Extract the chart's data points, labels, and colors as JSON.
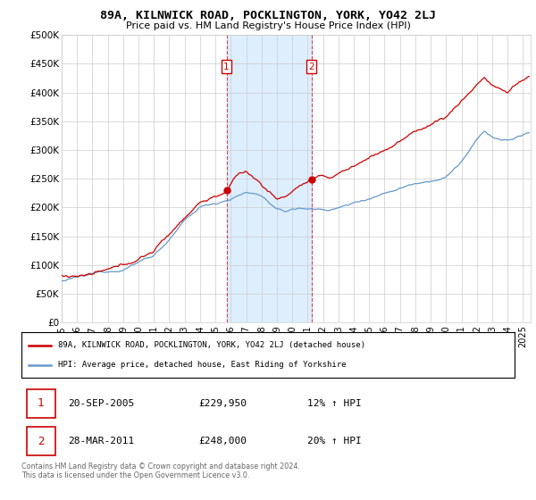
{
  "title": "89A, KILNWICK ROAD, POCKLINGTON, YORK, YO42 2LJ",
  "subtitle": "Price paid vs. HM Land Registry's House Price Index (HPI)",
  "ylabel_ticks": [
    "£0",
    "£50K",
    "£100K",
    "£150K",
    "£200K",
    "£250K",
    "£300K",
    "£350K",
    "£400K",
    "£450K",
    "£500K"
  ],
  "ytick_values": [
    0,
    50000,
    100000,
    150000,
    200000,
    250000,
    300000,
    350000,
    400000,
    450000,
    500000
  ],
  "xlim_start": 1995.0,
  "xlim_end": 2025.5,
  "ylim": [
    0,
    500000
  ],
  "sale1_x": 2005.72,
  "sale1_y": 229950,
  "sale1_label": "1",
  "sale1_date": "20-SEP-2005",
  "sale1_price": "£229,950",
  "sale1_hpi": "12% ↑ HPI",
  "sale2_x": 2011.24,
  "sale2_y": 248000,
  "sale2_label": "2",
  "sale2_date": "28-MAR-2011",
  "sale2_price": "£248,000",
  "sale2_hpi": "20% ↑ HPI",
  "red_line_color": "#cc0000",
  "blue_line_color": "#6699cc",
  "shade_color": "#ddeeff",
  "grid_color": "#cccccc",
  "background_color": "#ffffff",
  "legend_label_red": "89A, KILNWICK ROAD, POCKLINGTON, YORK, YO42 2LJ (detached house)",
  "legend_label_blue": "HPI: Average price, detached house, East Riding of Yorkshire",
  "footnote": "Contains HM Land Registry data © Crown copyright and database right 2024.\nThis data is licensed under the Open Government Licence v3.0."
}
